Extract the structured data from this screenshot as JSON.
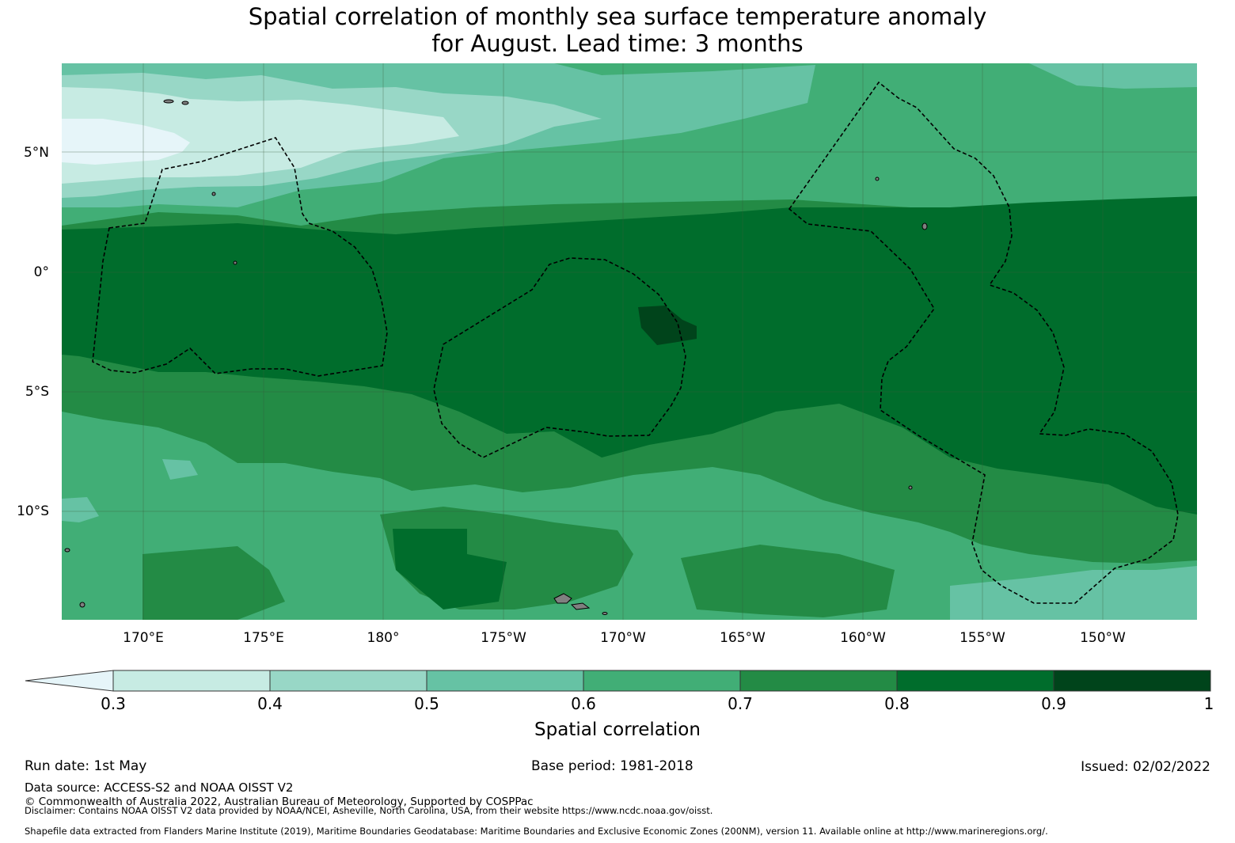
{
  "title_line1": "Spatial correlation of monthly sea surface temperature anomaly",
  "title_line2": "for August. Lead time: 3 months",
  "map": {
    "lat_labels": [
      "5°N",
      "0°",
      "5°S",
      "10°S"
    ],
    "lon_labels": [
      "170°E",
      "175°E",
      "180°",
      "175°W",
      "170°W",
      "165°W",
      "160°W",
      "155°W",
      "150°W"
    ],
    "colors": {
      "c_lt03": "#e6f5f9",
      "c03": "#c7ebe3",
      "c04": "#98d7c6",
      "c05": "#66c2a4",
      "c06": "#41ae76",
      "c07": "#238b45",
      "c08": "#006d2c",
      "c09": "#00441b",
      "eez_boundary": "#000000",
      "land": "#808080"
    }
  },
  "colorbar": {
    "ticks": [
      "0.3",
      "0.4",
      "0.5",
      "0.6",
      "0.7",
      "0.8",
      "0.9",
      "1"
    ],
    "label": "Spatial correlation"
  },
  "footer": {
    "run_date": "Run date: 1st May",
    "base_period": "Base period: 1981-2018",
    "issued": "Issued: 02/02/2022",
    "data_source": "Data source: ACCESS-S2 and NOAA OISST V2",
    "copyright": "© Commonwealth of Australia 2022, Australian Bureau of Meteorology, Supported by COSPPac",
    "disclaimer": "Disclaimer: Contains NOAA OISST V2 data provided by NOAA/NCEI, Asheville, North Carolina, USA, from their website https://www.ncdc.noaa.gov/oisst.",
    "shapefile": "Shapefile data extracted from Flanders Marine Institute (2019), Maritime Boundaries Geodatabase: Maritime Boundaries and Exclusive Economic Zones (200NM), version 11. Available online at http://www.marineregions.org/."
  }
}
